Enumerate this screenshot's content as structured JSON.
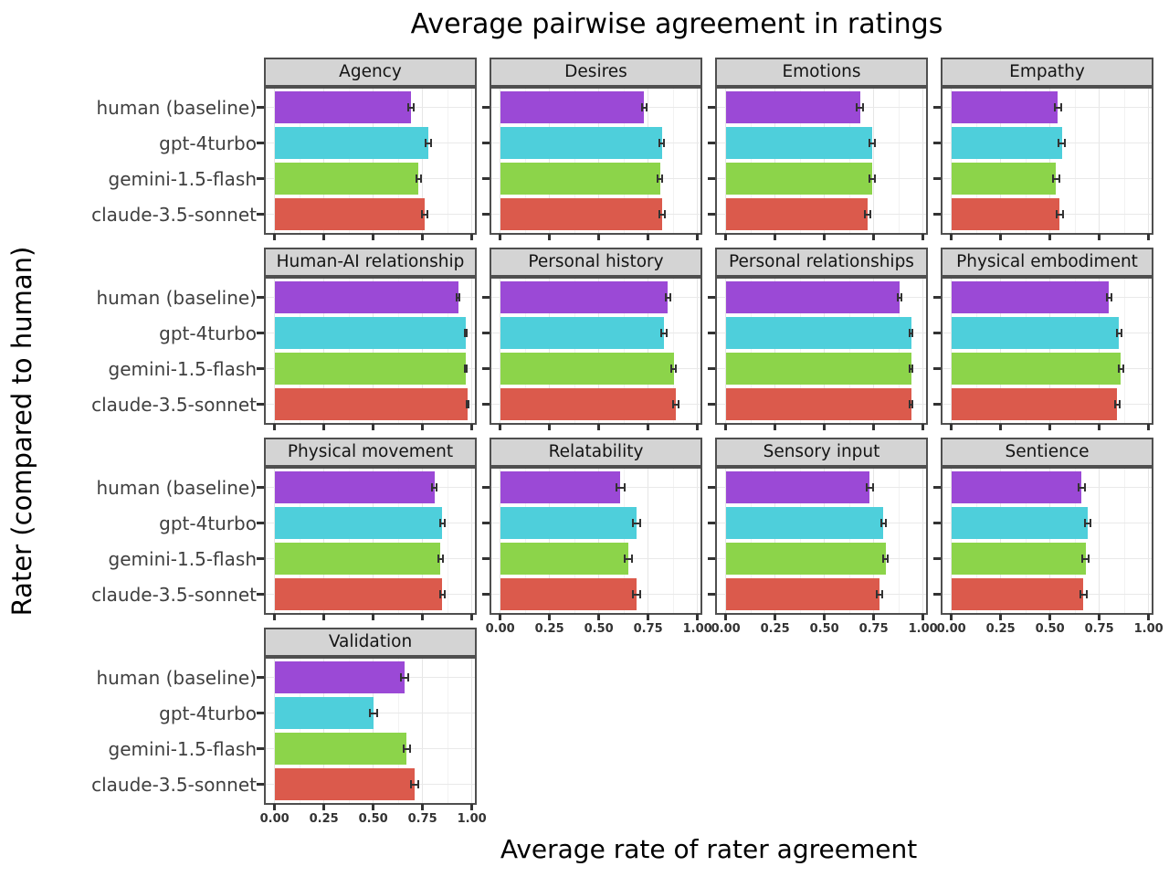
{
  "chart_data": {
    "type": "bar",
    "orientation": "horizontal",
    "title": "Average pairwise agreement in ratings",
    "xlabel": "Average rate of rater agreement",
    "ylabel": "Rater (compared to human)",
    "xlim": [
      0,
      1.0
    ],
    "x_ticks": [
      0,
      0.25,
      0.5,
      0.75,
      1.0
    ],
    "x_tick_labels": [
      "0.00",
      "0.25",
      "0.50",
      "0.75",
      "1.00"
    ],
    "grid": "light gray major+minor vertical lines, major horizontal lines, white panel background",
    "legend": "none",
    "facet_layout": "4 columns, row-major; 13th facet (Validation) in first column of 4th row",
    "categories": [
      "human (baseline)",
      "gpt-4turbo",
      "gemini-1.5-flash",
      "claude-3.5-sonnet"
    ],
    "series_colors": [
      "#9B49D6",
      "#4ECFDB",
      "#8CD44A",
      "#DB5A4C"
    ],
    "error_bar_color": "#333333",
    "strip_background": "#d4d4d4",
    "panel_border_color": "#4f4f4f",
    "facets": [
      {
        "label": "Agency",
        "values": [
          0.69,
          0.78,
          0.73,
          0.76
        ],
        "errors": [
          0.013,
          0.013,
          0.013,
          0.013
        ]
      },
      {
        "label": "Desires",
        "values": [
          0.73,
          0.82,
          0.81,
          0.82
        ],
        "errors": [
          0.013,
          0.012,
          0.013,
          0.013
        ]
      },
      {
        "label": "Emotions",
        "values": [
          0.68,
          0.74,
          0.74,
          0.72
        ],
        "errors": [
          0.015,
          0.014,
          0.014,
          0.015
        ]
      },
      {
        "label": "Empathy",
        "values": [
          0.54,
          0.56,
          0.53,
          0.55
        ],
        "errors": [
          0.017,
          0.017,
          0.017,
          0.017
        ]
      },
      {
        "label": "Human-AI relationship",
        "values": [
          0.93,
          0.97,
          0.97,
          0.98
        ],
        "errors": [
          0.008,
          0.005,
          0.005,
          0.005
        ]
      },
      {
        "label": "Personal history",
        "values": [
          0.85,
          0.83,
          0.88,
          0.89
        ],
        "errors": [
          0.012,
          0.012,
          0.012,
          0.012
        ]
      },
      {
        "label": "Personal relationships",
        "values": [
          0.88,
          0.94,
          0.94,
          0.94
        ],
        "errors": [
          0.01,
          0.008,
          0.008,
          0.008
        ]
      },
      {
        "label": "Physical embodiment",
        "values": [
          0.8,
          0.85,
          0.86,
          0.84
        ],
        "errors": [
          0.013,
          0.012,
          0.012,
          0.012
        ]
      },
      {
        "label": "Physical movement",
        "values": [
          0.81,
          0.85,
          0.84,
          0.85
        ],
        "errors": [
          0.012,
          0.012,
          0.012,
          0.012
        ]
      },
      {
        "label": "Relatability",
        "values": [
          0.61,
          0.69,
          0.65,
          0.69
        ],
        "errors": [
          0.02,
          0.018,
          0.018,
          0.018
        ]
      },
      {
        "label": "Sensory input",
        "values": [
          0.73,
          0.8,
          0.81,
          0.78
        ],
        "errors": [
          0.015,
          0.013,
          0.013,
          0.014
        ]
      },
      {
        "label": "Sentience",
        "values": [
          0.66,
          0.69,
          0.68,
          0.67
        ],
        "errors": [
          0.015,
          0.015,
          0.015,
          0.015
        ]
      },
      {
        "label": "Validation",
        "values": [
          0.66,
          0.5,
          0.67,
          0.71
        ],
        "errors": [
          0.018,
          0.018,
          0.018,
          0.018
        ]
      }
    ]
  }
}
